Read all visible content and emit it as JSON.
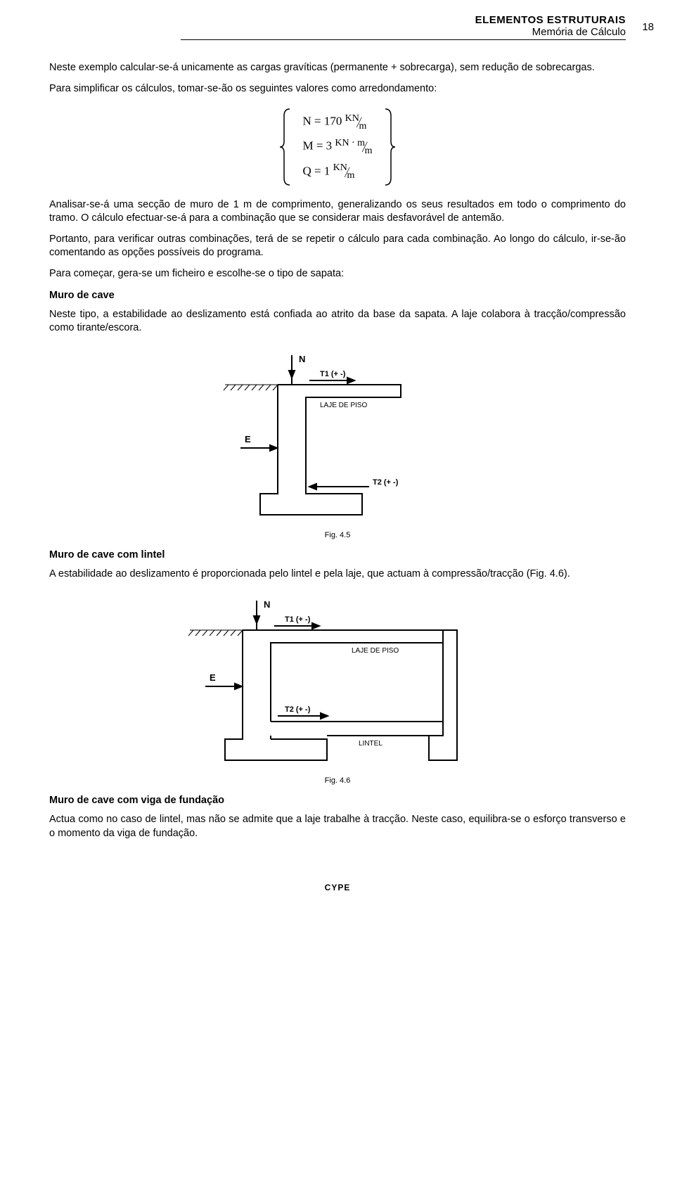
{
  "header": {
    "line1": "ELEMENTOS ESTRUTURAIS",
    "line2": "Memória de Cálculo",
    "pageNo": "18"
  },
  "p1": "Neste exemplo calcular-se-á unicamente as cargas gravíticas (permanente + sobrecarga), sem redução de sobrecargas.",
  "p2": "Para simplificar os cálculos, tomar-se-ão os seguintes valores como arredondamento:",
  "formula": {
    "n_lhs": "N = 170",
    "m_lhs": "M = 3",
    "q_lhs": "Q = 1",
    "kn": "KN",
    "knm": "KN ⋅ m",
    "m": "m"
  },
  "p3": "Analisar-se-á uma secção de muro de 1 m de comprimento, generalizando os seus resultados em todo o comprimento do tramo. O cálculo efectuar-se-á para a combinação que se considerar mais desfavorável de antemão.",
  "p4": "Portanto, para verificar outras combinações, terá de se repetir o cálculo para cada combinação. Ao longo do cálculo, ir-se-ão comentando as opções possíveis do programa.",
  "p5": "Para começar, gera-se um ficheiro e escolhe-se o tipo de sapata:",
  "h1": "Muro de cave",
  "p6": "Neste tipo, a estabilidade ao deslizamento está confiada ao atrito da base da sapata. A laje colabora à tracção/compressão como tirante/escora.",
  "fig45": {
    "caption": "Fig. 4.5",
    "labels": {
      "N": "N",
      "T1": "T1 (+ -)",
      "laje": "LAJE DE PISO",
      "E": "E",
      "T2": "T2 (+ -)"
    }
  },
  "h2": "Muro de cave com lintel",
  "p7": "A estabilidade ao deslizamento é proporcionada pelo lintel e pela laje, que actuam à compressão/tracção (Fig. 4.6).",
  "fig46": {
    "caption": "Fig. 4.6",
    "labels": {
      "N": "N",
      "T1": "T1 (+ -)",
      "laje": "LAJE DE PISO",
      "E": "E",
      "T2": "T2 (+ -)",
      "lintel": "LINTEL"
    }
  },
  "h3": "Muro de cave com viga de fundação",
  "p8": "Actua como no caso de lintel, mas não se admite que a laje trabalhe à tracção. Neste caso, equilibra-se o esforço transverso e o momento da viga de fundação.",
  "footer": "CYPE"
}
